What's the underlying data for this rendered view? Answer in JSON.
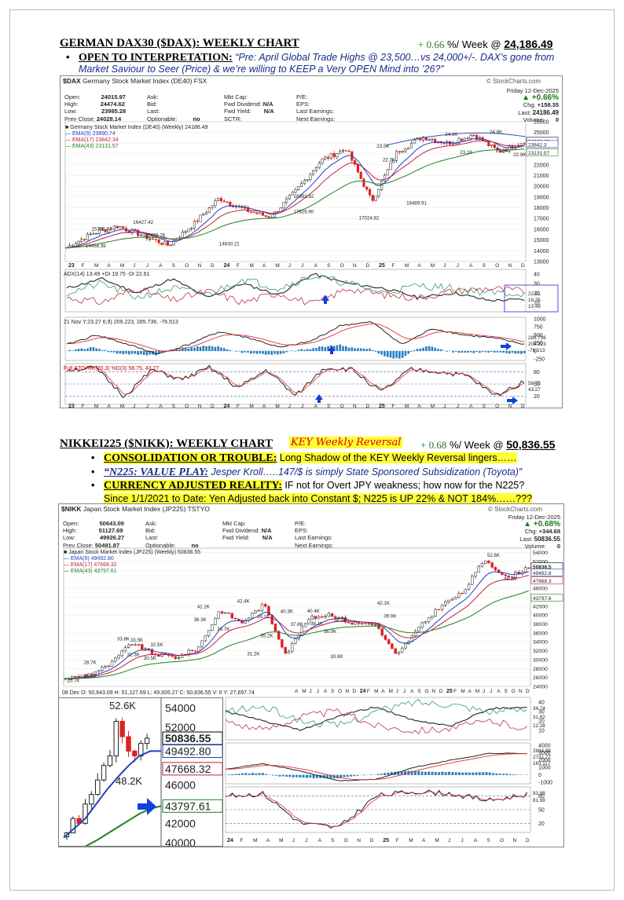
{
  "dax_header": {
    "title": "GERMAN DAX30 ($DAX): WEEKLY CHART",
    "change": "+ 0.66",
    "suffix": "%/ Week @",
    "level": "24,186.49"
  },
  "dax_bullet": {
    "label": "OPEN TO INTERPRETATION:",
    "text": "“Pre: April Global Trade Highs @ 23,500…vs 24,000+/-.  DAX’s gone from Market Saviour to Seer (Price) & we’re willing to KEEP a Very OPEN Mind into ’26?”"
  },
  "dax_chart": {
    "symbol": "$DAX",
    "name": "Germany Stock Market Index (DE40)",
    "exchange": "FSX",
    "logo": "© StockCharts.com",
    "date": "Friday  12-Dec-2025",
    "pct": "▲ +0.66%",
    "chg": "+158.35",
    "last": "24186.49",
    "volume": "0",
    "open": "24015.97",
    "high": "24474.62",
    "low": "23985.28",
    "prev_close": "24028.14",
    "optionable": "no",
    "fwd_div": "N/A",
    "fwd_yield": "N/A",
    "legend_title": "■ Germany Stock Market Index (DE40) (Weekly) 24186.49",
    "ema9": "— EMA(9) 23890.74",
    "ema17": "— EMA(17) 23842.34",
    "ema43": "— EMA(43) 23131.57",
    "adx_label": "ADX(14) 13.49  +DI 19.75  -DI 22.61",
    "macd_label": "21 Nov Y:23.27  6,9) 209.223, 285.736, -76.513",
    "sto_label": "Full STO %K(20,3) %D(3) 58.75, 43.27",
    "annotations": [
      "15796.37",
      "16427.42",
      "14458.39",
      "15456.26",
      "14630.21",
      "18892.92",
      "17626.90",
      "17024.82",
      "23.5K",
      "22.3K",
      "18489.91",
      "24.6K",
      "24.8K",
      "23.1K",
      "23.3K",
      "22.9K"
    ],
    "yticks": [
      "26000",
      "25000",
      "24000",
      "23000",
      "22000",
      "21000",
      "20000",
      "19000",
      "18000",
      "17000",
      "16000",
      "15000",
      "14000",
      "13000"
    ],
    "xticks": [
      "23",
      "F",
      "M",
      "A",
      "M",
      "J",
      "J",
      "A",
      "S",
      "O",
      "N",
      "D",
      "24",
      "F",
      "M",
      "A",
      "M",
      "J",
      "J",
      "A",
      "S",
      "O",
      "N",
      "D",
      "25",
      "F",
      "M",
      "A",
      "M",
      "J",
      "J",
      "A",
      "S",
      "O",
      "N",
      "D"
    ],
    "adx_ticks": [
      "40",
      "30",
      "20",
      "10"
    ],
    "adx_values": [
      "22.61",
      "19.75",
      "13.49"
    ],
    "macd_ticks": [
      "1000",
      "750",
      "500",
      "250",
      "0",
      "-250"
    ],
    "macd_values": [
      "285.736",
      "209.223",
      "-76.513"
    ],
    "sto_ticks": [
      "80",
      "50",
      "20"
    ],
    "sto_values": [
      "58.75",
      "43.27"
    ],
    "price_tag": "24186.49",
    "ema_tags": [
      "23890.7",
      "23842.3",
      "23131.57"
    ]
  },
  "nikk_header": {
    "title": "NIKKEI225 ($NIKK): WEEKLY CHART",
    "key": "KEY Weekly Reversal",
    "change": "+ 0.68",
    "suffix": "%/ Week @",
    "level": "50,836.55"
  },
  "nikk_bullets": [
    {
      "label": "CONSOLIDATION OR TROUBLE:",
      "text": "Long Shadow of the KEY Weekly Reversal lingers……"
    },
    {
      "label": "“N225: VALUE PLAY:",
      "text": "Jesper Kroll…..147/$ is simply State Sponsored Subsidization (Toyota)”"
    },
    {
      "label": "CURRENCY ADJUSTED REALITY:",
      "text": "IF not for Overt JPY weakness; how now for the N225?",
      "line2": "Since 1/1/2021 to Date: Yen Adjusted back into Constant $; N225 is UP 22% & NOT 184%……???"
    }
  ],
  "nikk_chart": {
    "symbol": "$NIKK",
    "name": "Japan Stock Market Index (JP225)",
    "exchange": "TSTYO",
    "logo": "© StockCharts.com",
    "date": "Friday  12-Dec-2025",
    "pct": "▲ +0.68%",
    "chg": "+344.68",
    "last": "50836.55",
    "volume": "0",
    "open": "50643.09",
    "high": "51127.69",
    "low": "49926.27",
    "prev_close": "50491.87",
    "optionable": "no",
    "fwd_div": "N/A",
    "fwd_yield": "N/A",
    "legend_title": "■ Japan Stock Market Index (JP225) (Weekly) 50836.55",
    "ema9": "— EMA(9) 49492.80",
    "ema17": "— EMA(17) 47668.32",
    "ema43": "— EMA(43) 43797.61",
    "ohlc_line": "08 Dec O: 50,643.09   H: 51,127.69   L: 49,926.27   C: 50,836.55   V: 0   Y: 27,697.74",
    "annotations": [
      "25.7K",
      "26.6K",
      "28.7K",
      "33.8K",
      "33.5K",
      "31.3K",
      "30.5K",
      "32.5K",
      "41.1K",
      "38.3K",
      "36.7K",
      "42.4K",
      "39.1K",
      "35.2K",
      "31.2K",
      "40.3K",
      "40.4K",
      "37.8K",
      "38.1K",
      "38.2K",
      "36.0K",
      "30.8K",
      "42.1K",
      "39.9K",
      "52.6K",
      "48.2K"
    ],
    "yticks": [
      "54000",
      "52000",
      "50000",
      "48000",
      "46000",
      "44000",
      "42000",
      "40000",
      "38000",
      "36000",
      "34000",
      "32000",
      "30000",
      "28000",
      "26000",
      "24000"
    ],
    "xticks_mid": [
      "A",
      "M",
      "J",
      "J",
      "A",
      "S",
      "O",
      "N",
      "D",
      "24",
      "F",
      "M",
      "A",
      "M",
      "J",
      "J",
      "A",
      "S",
      "O",
      "N",
      "D",
      "25",
      "F",
      "M",
      "A",
      "M",
      "J",
      "J",
      "A",
      "S",
      "O",
      "N",
      "D"
    ],
    "xticks_bottom": [
      "24",
      "F",
      "M",
      "A",
      "M",
      "J",
      "J",
      "A",
      "S",
      "O",
      "N",
      "D",
      "25",
      "F",
      "M",
      "A",
      "M",
      "J",
      "J",
      "A",
      "S",
      "O",
      "N",
      "D"
    ],
    "price_tags": [
      "50836.5",
      "49492.8",
      "47668.3",
      "43797.6"
    ],
    "adx_ticks": [
      "40",
      "30",
      "20",
      "10"
    ],
    "adx_values": [
      "34.74",
      "31.82",
      "12.28"
    ],
    "macd_ticks": [
      "4000",
      "3000",
      "2000",
      "1000",
      "0",
      "-1000"
    ],
    "macd_values": [
      "2894.88",
      "2731.77",
      "163.117"
    ],
    "sto_ticks": [
      "80",
      "50",
      "20"
    ],
    "sto_values": [
      "83.88",
      "81.99"
    ],
    "zoom": {
      "ticks": [
        "54000",
        "52000",
        "50836.55",
        "49492.80",
        "47668.32",
        "46000",
        "43797.61",
        "42000",
        "40000"
      ],
      "labels": [
        "52.6K",
        "48.2K"
      ]
    }
  }
}
